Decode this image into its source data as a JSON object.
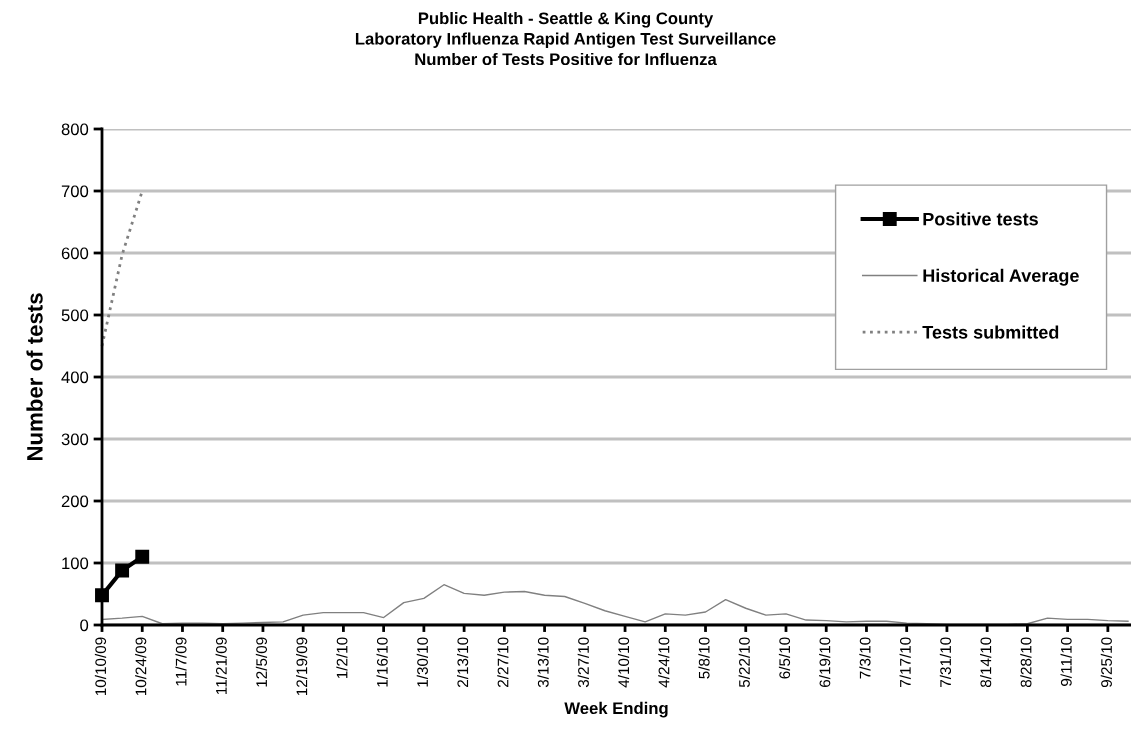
{
  "chart_data": {
    "type": "line",
    "title": "Public Health - Seattle & King County\nLaboratory Influenza Rapid Antigen Test Surveillance\nNumber of Tests Positive for Influenza",
    "xlabel": "Week Ending",
    "ylabel": "Number of tests",
    "categories": [
      "10/10/09",
      null,
      "10/24/09",
      null,
      "11/7/09",
      null,
      "11/21/09",
      null,
      "12/5/09",
      null,
      "12/19/09",
      null,
      "1/2/10",
      null,
      "1/16/10",
      null,
      "1/30/10",
      null,
      "2/13/10",
      null,
      "2/27/10",
      null,
      "3/13/10",
      null,
      "3/27/10",
      null,
      "4/10/10",
      null,
      "4/24/10",
      null,
      "5/8/10",
      null,
      "5/22/10",
      null,
      "6/5/10",
      null,
      "6/19/10",
      null,
      "7/3/10",
      null,
      "7/17/10",
      null,
      "7/31/10",
      null,
      "8/14/10",
      null,
      "8/28/10",
      null,
      "9/11/10",
      null,
      "9/25/10",
      null
    ],
    "ylim": [
      0,
      800
    ],
    "yticks": [
      0,
      100,
      200,
      300,
      400,
      500,
      600,
      700,
      800
    ],
    "grid": "y",
    "legend": "top right",
    "series": [
      {
        "name": "Positive tests",
        "color": "#000000",
        "marker": "square",
        "line_style": "solid",
        "values": [
          48,
          88,
          110,
          null,
          null,
          null,
          null,
          null,
          null,
          null,
          null,
          null,
          null,
          null,
          null,
          null,
          null,
          null,
          null,
          null,
          null,
          null,
          null,
          null,
          null,
          null,
          null,
          null,
          null,
          null,
          null,
          null,
          null,
          null,
          null,
          null,
          null,
          null,
          null,
          null,
          null,
          null,
          null,
          null,
          null,
          null,
          null,
          null,
          null,
          null,
          null,
          null
        ]
      },
      {
        "name": "Historical Average",
        "color": "#808080",
        "marker": "none",
        "line_style": "solid",
        "values": [
          9,
          11,
          14,
          2,
          3,
          3,
          2,
          3,
          4,
          5,
          16,
          20,
          20,
          20,
          12,
          36,
          43,
          65,
          51,
          48,
          53,
          54,
          48,
          46,
          35,
          23,
          14,
          5,
          18,
          16,
          21,
          41,
          27,
          16,
          18,
          8,
          7,
          5,
          6,
          6,
          3,
          2,
          1,
          1,
          1,
          1,
          2,
          11,
          9,
          9,
          7,
          6
        ]
      },
      {
        "name": "Tests submitted",
        "color": "#808080",
        "marker": "none",
        "line_style": "dotted",
        "values": [
          450,
          597,
          700,
          null,
          null,
          null,
          null,
          null,
          null,
          null,
          null,
          null,
          null,
          null,
          null,
          null,
          null,
          null,
          null,
          null,
          null,
          null,
          null,
          null,
          null,
          null,
          null,
          null,
          null,
          null,
          null,
          null,
          null,
          null,
          null,
          null,
          null,
          null,
          null,
          null,
          null,
          null,
          null,
          null,
          null,
          null,
          null,
          null,
          null,
          null,
          null,
          null
        ]
      }
    ]
  }
}
